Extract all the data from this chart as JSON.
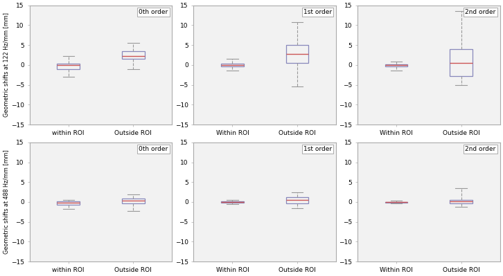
{
  "top_ylabel": "Geometric shifts at 122 Hz/mm [mm]",
  "bottom_ylabel": "Geometric shifts at 488 Hz/mm [mm]",
  "ylim": [
    -15,
    15
  ],
  "yticks": [
    -15,
    -10,
    -5,
    0,
    5,
    10,
    15
  ],
  "orders": [
    "0th order",
    "1st order",
    "2nd order"
  ],
  "xlabels_top": [
    [
      "within ROI",
      "Outside ROI"
    ],
    [
      "Within ROI",
      "Outside ROI"
    ],
    [
      "Within ROI",
      "Outside ROI"
    ]
  ],
  "xlabels_bottom": [
    [
      "within ROI",
      "Outside ROI"
    ],
    [
      "Within ROI",
      "Outside ROI"
    ],
    [
      "Within ROI",
      "Outside ROI"
    ]
  ],
  "box_color": "#8888BB",
  "median_color": "#CC5555",
  "whisker_color": "#999999",
  "cap_color": "#999999",
  "ax_bg_color": "#f2f2f2",
  "fig_bg_color": "#ffffff",
  "spine_color": "#aaaaaa",
  "plots": {
    "top": [
      {
        "order": "0th order",
        "within": {
          "q1": -1.0,
          "median": -0.1,
          "q3": 0.4,
          "whislo": -3.0,
          "whishi": 2.2
        },
        "outside": {
          "q1": 1.5,
          "median": 2.3,
          "q3": 3.5,
          "whislo": -1.0,
          "whishi": 5.5
        }
      },
      {
        "order": "1st order",
        "within": {
          "q1": -0.3,
          "median": 0.0,
          "q3": 0.3,
          "whislo": -1.5,
          "whishi": 1.5
        },
        "outside": {
          "q1": 0.5,
          "median": 2.8,
          "q3": 5.0,
          "whislo": -5.5,
          "whishi": 10.8
        }
      },
      {
        "order": "2nd order",
        "within": {
          "q1": -0.3,
          "median": -0.1,
          "q3": 0.1,
          "whislo": -1.5,
          "whishi": 0.8
        },
        "outside": {
          "q1": -2.8,
          "median": 0.5,
          "q3": 4.0,
          "whislo": -5.0,
          "whishi": 13.5
        }
      }
    ],
    "bottom": [
      {
        "order": "0th order",
        "within": {
          "q1": -0.7,
          "median": -0.1,
          "q3": 0.15,
          "whislo": -1.8,
          "whishi": 0.5
        },
        "outside": {
          "q1": -0.4,
          "median": 0.3,
          "q3": 0.9,
          "whislo": -2.2,
          "whishi": 1.9
        }
      },
      {
        "order": "1st order",
        "within": {
          "q1": -0.15,
          "median": 0.0,
          "q3": 0.15,
          "whislo": -0.6,
          "whishi": 0.6
        },
        "outside": {
          "q1": -0.3,
          "median": 0.5,
          "q3": 1.2,
          "whislo": -1.5,
          "whishi": 2.5
        }
      },
      {
        "order": "2nd order",
        "within": {
          "q1": -0.15,
          "median": 0.0,
          "q3": 0.05,
          "whislo": -0.4,
          "whishi": 0.3
        },
        "outside": {
          "q1": -0.4,
          "median": 0.2,
          "q3": 0.5,
          "whislo": -1.2,
          "whishi": 3.5
        }
      }
    ]
  }
}
